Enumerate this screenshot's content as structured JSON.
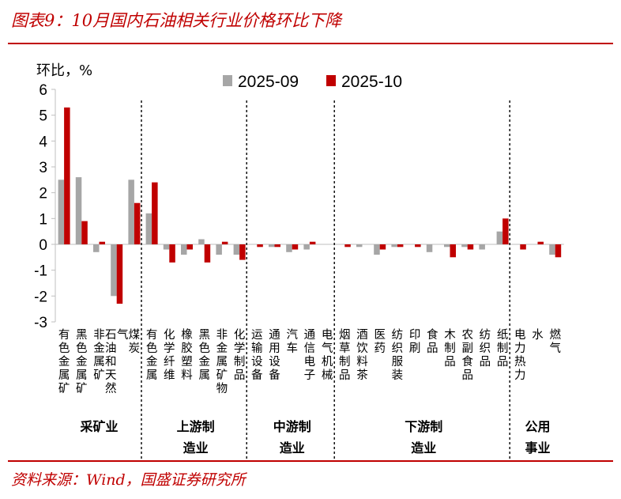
{
  "title": "图表9：10月国内石油相关行业价格环比下降",
  "source": "资料来源：Wind，国盛证券研究所",
  "colors": {
    "brand": "#c00000",
    "series_2025_09": "#a6a6a6",
    "series_2025_10": "#c00000"
  },
  "chart_data": {
    "type": "bar",
    "title": "10月国内石油相关行业价格环比下降",
    "ylabel": "环比，%",
    "ylim": [
      -3,
      6
    ],
    "yticks": [
      6,
      5,
      4,
      3,
      2,
      1,
      0,
      -1,
      -2,
      -3
    ],
    "legend_position": "top-center",
    "categories": [
      "有色金属矿",
      "黑色金属矿",
      "非金属矿",
      "石油和天然气",
      "煤炭",
      "有色金属",
      "化学纤维",
      "橡胶塑料",
      "黑色金属",
      "非金属矿物",
      "化学制品",
      "运输设备",
      "通用设备",
      "汽车",
      "通信电子",
      "电气机械",
      "烟草制品",
      "酒饮料茶",
      "医药",
      "纺织服装",
      "印刷",
      "食品",
      "木制品",
      "农副食品",
      "纺织品",
      "纸制品",
      "电力热力",
      "水",
      "燃气"
    ],
    "series": [
      {
        "name": "2025-09",
        "values": [
          2.5,
          2.6,
          -0.3,
          -2.0,
          2.5,
          1.2,
          -0.2,
          -0.4,
          0.2,
          -0.4,
          -0.4,
          0.0,
          -0.1,
          -0.3,
          -0.2,
          0.0,
          0.0,
          -0.1,
          -0.4,
          -0.1,
          0.0,
          -0.3,
          -0.1,
          -0.1,
          -0.2,
          0.5,
          0.0,
          0.0,
          -0.4
        ]
      },
      {
        "name": "2025-10",
        "values": [
          5.3,
          0.9,
          0.1,
          -2.3,
          1.6,
          2.4,
          -0.7,
          -0.2,
          -0.7,
          0.1,
          -0.6,
          -0.1,
          -0.1,
          -0.2,
          0.1,
          0.0,
          -0.1,
          0.0,
          -0.2,
          -0.1,
          -0.1,
          0.0,
          -0.5,
          -0.2,
          0.0,
          1.0,
          -0.2,
          0.1,
          -0.5
        ]
      }
    ],
    "groups": [
      {
        "label": "采矿业",
        "start": 0,
        "end": 4
      },
      {
        "label": "上游制造业",
        "start": 5,
        "end": 10
      },
      {
        "label": "中游制造业",
        "start": 11,
        "end": 15
      },
      {
        "label": "下游制造业",
        "start": 16,
        "end": 25
      },
      {
        "label": "公用事业",
        "start": 26,
        "end": 28
      }
    ]
  }
}
